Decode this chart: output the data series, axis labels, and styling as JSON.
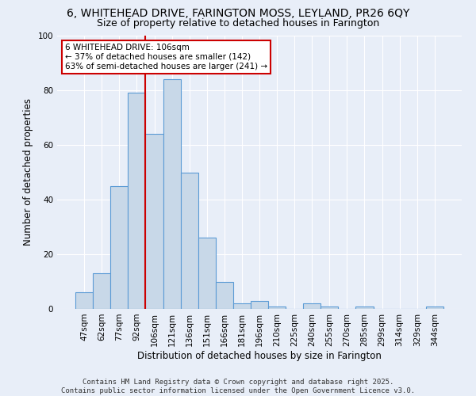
{
  "title_line1": "6, WHITEHEAD DRIVE, FARINGTON MOSS, LEYLAND, PR26 6QY",
  "title_line2": "Size of property relative to detached houses in Farington",
  "xlabel": "Distribution of detached houses by size in Farington",
  "ylabel": "Number of detached properties",
  "categories": [
    "47sqm",
    "62sqm",
    "77sqm",
    "92sqm",
    "106sqm",
    "121sqm",
    "136sqm",
    "151sqm",
    "166sqm",
    "181sqm",
    "196sqm",
    "210sqm",
    "225sqm",
    "240sqm",
    "255sqm",
    "270sqm",
    "285sqm",
    "299sqm",
    "314sqm",
    "329sqm",
    "344sqm"
  ],
  "values": [
    6,
    13,
    45,
    79,
    64,
    84,
    50,
    26,
    10,
    2,
    3,
    1,
    0,
    2,
    1,
    0,
    1,
    0,
    0,
    0,
    1
  ],
  "bar_color": "#c8d8e8",
  "bar_edge_color": "#5b9bd5",
  "background_color": "#e8eef8",
  "grid_color": "#ffffff",
  "annotation_box_text": "6 WHITEHEAD DRIVE: 106sqm\n← 37% of detached houses are smaller (142)\n63% of semi-detached houses are larger (241) →",
  "annotation_box_color": "#ffffff",
  "annotation_box_edge_color": "#cc0000",
  "vline_color": "#cc0000",
  "ylim": [
    0,
    100
  ],
  "yticks": [
    0,
    20,
    40,
    60,
    80,
    100
  ],
  "footer_text": "Contains HM Land Registry data © Crown copyright and database right 2025.\nContains public sector information licensed under the Open Government Licence v3.0.",
  "title_fontsize": 10,
  "subtitle_fontsize": 9,
  "axis_label_fontsize": 8.5,
  "tick_fontsize": 7.5,
  "annotation_fontsize": 7.5,
  "footer_fontsize": 6.5
}
